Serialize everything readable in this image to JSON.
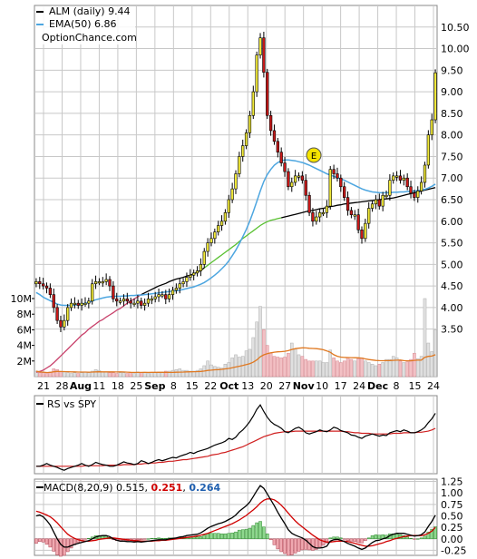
{
  "chart_data": [
    {
      "type": "candlestick",
      "title": "ALM (daily) 9.44",
      "watermark": "OptionChance.com",
      "legend": [
        {
          "label": "ALM (daily) 9.44",
          "color": "#000000"
        },
        {
          "label": "EMA(50) 6.86",
          "color": "#4da6e0"
        }
      ],
      "y_ticks": [
        "10.50",
        "10.00",
        "9.50",
        "9.00",
        "8.50",
        "8.00",
        "7.50",
        "7.00",
        "6.50",
        "6.00",
        "5.50",
        "5.00",
        "4.50",
        "4.00",
        "3.50"
      ],
      "volume_ticks": [
        "10M",
        "8M",
        "6M",
        "4M",
        "2M"
      ],
      "x_labels": [
        "21",
        "28",
        "Aug",
        "11",
        "18",
        "25",
        "Sep",
        "8",
        "15",
        "22",
        "Oct",
        "13",
        "20",
        "27",
        "Nov",
        "10",
        "17",
        "24",
        "Dec",
        "8",
        "15",
        "24"
      ],
      "ylim": [
        2.4,
        11.0
      ],
      "grid": true,
      "event_marker": "E",
      "close": [
        4.6,
        4.55,
        4.5,
        4.45,
        4.3,
        4.0,
        3.7,
        3.55,
        3.7,
        4.0,
        4.1,
        4.1,
        4.05,
        4.1,
        4.1,
        4.15,
        4.55,
        4.6,
        4.6,
        4.6,
        4.65,
        4.5,
        4.2,
        4.15,
        4.15,
        4.2,
        4.15,
        4.1,
        4.1,
        4.15,
        4.05,
        4.1,
        4.2,
        4.2,
        4.25,
        4.3,
        4.3,
        4.2,
        4.3,
        4.4,
        4.45,
        4.55,
        4.6,
        4.7,
        4.75,
        4.8,
        4.85,
        5.0,
        5.3,
        5.5,
        5.6,
        5.75,
        5.9,
        6.0,
        6.2,
        6.5,
        6.75,
        7.1,
        7.5,
        7.75,
        8.05,
        8.45,
        9.0,
        9.85,
        10.25,
        9.45,
        8.45,
        8.1,
        7.85,
        7.6,
        7.35,
        7.15,
        6.8,
        6.9,
        7.05,
        7.05,
        6.95,
        6.6,
        6.2,
        6.0,
        6.1,
        6.2,
        6.2,
        6.35,
        7.2,
        7.1,
        7.0,
        6.8,
        6.55,
        6.25,
        6.15,
        6.15,
        5.8,
        5.6,
        5.95,
        6.3,
        6.4,
        6.5,
        6.35,
        6.6,
        6.6,
        6.95,
        7.05,
        7.05,
        6.95,
        7.0,
        6.8,
        6.65,
        6.55,
        6.7,
        6.9,
        7.3,
        8.0,
        8.35,
        9.44
      ],
      "ema50": [
        4.35,
        4.3,
        4.24,
        4.2,
        4.16,
        4.12,
        4.08,
        4.06,
        4.05,
        4.05,
        4.05,
        4.06,
        4.07,
        4.08,
        4.1,
        4.12,
        4.15,
        4.18,
        4.2,
        4.22,
        4.24,
        4.25,
        4.26,
        4.26,
        4.26,
        4.27,
        4.27,
        4.28,
        4.28,
        4.29,
        4.29,
        4.3,
        4.31,
        4.32,
        4.33,
        4.34,
        4.35,
        4.36,
        4.37,
        4.38,
        4.39,
        4.4,
        4.42,
        4.44,
        4.46,
        4.48,
        4.51,
        4.54,
        4.58,
        4.63,
        4.69,
        4.75,
        4.82,
        4.9,
        4.98,
        5.08,
        5.2,
        5.33,
        5.48,
        5.64,
        5.81,
        6.0,
        6.22,
        6.46,
        6.7,
        6.92,
        7.08,
        7.2,
        7.3,
        7.36,
        7.4,
        7.42,
        7.42,
        7.41,
        7.4,
        7.38,
        7.36,
        7.33,
        7.3,
        7.26,
        7.22,
        7.18,
        7.14,
        7.1,
        7.07,
        7.04,
        7.01,
        6.98,
        6.95,
        6.91,
        6.87,
        6.83,
        6.79,
        6.75,
        6.72,
        6.7,
        6.68,
        6.67,
        6.66,
        6.66,
        6.66,
        6.66,
        6.67,
        6.67,
        6.68,
        6.68,
        6.69,
        6.69,
        6.7,
        6.71,
        6.72,
        6.74,
        6.77,
        6.81,
        6.86
      ],
      "sma200": [
        2.5,
        2.52,
        2.55,
        2.6,
        2.65,
        2.72,
        2.8,
        2.88,
        2.96,
        3.04,
        3.12,
        3.2,
        3.28,
        3.36,
        3.42,
        3.5,
        3.56,
        3.62,
        3.68,
        3.72,
        3.78,
        3.83,
        3.88,
        3.94,
        3.98,
        4.04,
        4.1,
        4.16,
        4.2,
        4.25,
        4.3,
        4.34,
        4.38,
        4.42,
        4.46,
        4.5,
        4.53,
        4.56,
        4.6,
        4.63,
        4.66,
        4.68,
        4.7,
        4.73,
        4.75,
        4.78,
        4.82,
        4.86,
        4.92,
        4.98,
        5.04,
        5.1,
        5.16,
        5.22,
        5.28,
        5.34,
        5.4,
        5.46,
        5.53,
        5.6,
        5.66,
        5.72,
        5.78,
        5.84,
        5.9,
        5.95,
        5.99,
        6.02,
        6.04,
        6.06,
        6.08,
        6.1,
        6.12,
        6.14,
        6.16,
        6.18,
        6.2,
        6.22,
        6.24,
        6.25,
        6.27,
        6.29,
        6.3,
        6.32,
        6.34,
        6.35,
        6.37,
        6.38,
        6.4,
        6.41,
        6.42,
        6.43,
        6.44,
        6.45,
        6.46,
        6.47,
        6.48,
        6.49,
        6.5,
        6.51,
        6.52,
        6.53,
        6.54,
        6.56,
        6.58,
        6.6,
        6.62,
        6.64,
        6.66,
        6.68,
        6.7,
        6.72,
        6.74,
        6.76,
        6.78
      ],
      "volume": [
        0.7,
        0.5,
        0.5,
        0.4,
        0.6,
        1.0,
        0.9,
        0.6,
        0.6,
        0.5,
        0.4,
        0.5,
        0.4,
        0.5,
        0.6,
        0.5,
        0.7,
        0.9,
        0.8,
        0.6,
        0.6,
        0.5,
        0.5,
        0.4,
        0.5,
        0.5,
        0.4,
        0.5,
        0.4,
        0.6,
        0.5,
        0.5,
        0.4,
        0.5,
        0.5,
        0.6,
        0.6,
        0.7,
        0.7,
        0.8,
        0.9,
        1.0,
        0.8,
        0.8,
        0.7,
        0.7,
        0.8,
        1.0,
        1.4,
        2.0,
        1.5,
        1.3,
        1.2,
        1.1,
        1.6,
        1.8,
        2.4,
        2.8,
        2.5,
        2.6,
        3.3,
        3.5,
        5.0,
        7.0,
        9.0,
        6.0,
        4.0,
        3.0,
        2.6,
        2.5,
        2.4,
        2.5,
        3.0,
        4.3,
        3.5,
        2.8,
        2.6,
        2.2,
        2.0,
        2.0,
        2.0,
        2.0,
        1.8,
        1.8,
        3.4,
        2.4,
        2.0,
        1.8,
        2.0,
        2.4,
        2.2,
        2.0,
        2.3,
        2.4,
        2.0,
        1.8,
        1.6,
        1.4,
        1.6,
        1.8,
        2.2,
        2.2,
        2.6,
        2.4,
        2.0,
        1.8,
        1.9,
        2.2,
        3.0,
        2.3,
        2.6,
        10.0,
        4.3,
        3.2,
        6.0
      ]
    },
    {
      "type": "line",
      "title": "RS vs SPY",
      "series": [
        {
          "name": "RS vs SPY"
        }
      ],
      "rs": [
        0.1,
        0.1,
        0.12,
        0.15,
        0.12,
        0.1,
        0.08,
        0.05,
        0.03,
        0.06,
        0.08,
        0.1,
        0.12,
        0.15,
        0.12,
        0.1,
        0.13,
        0.17,
        0.15,
        0.13,
        0.12,
        0.1,
        0.1,
        0.12,
        0.15,
        0.18,
        0.16,
        0.15,
        0.13,
        0.15,
        0.2,
        0.18,
        0.15,
        0.17,
        0.2,
        0.22,
        0.2,
        0.22,
        0.24,
        0.26,
        0.25,
        0.28,
        0.3,
        0.32,
        0.35,
        0.33,
        0.36,
        0.38,
        0.4,
        0.42,
        0.45,
        0.48,
        0.5,
        0.52,
        0.55,
        0.6,
        0.58,
        0.62,
        0.7,
        0.75,
        0.82,
        0.9,
        1.0,
        1.12,
        1.2,
        1.08,
        0.98,
        0.9,
        0.85,
        0.82,
        0.78,
        0.72,
        0.7,
        0.74,
        0.78,
        0.8,
        0.76,
        0.7,
        0.68,
        0.7,
        0.72,
        0.75,
        0.73,
        0.72,
        0.75,
        0.8,
        0.78,
        0.74,
        0.72,
        0.7,
        0.66,
        0.65,
        0.62,
        0.6,
        0.64,
        0.66,
        0.68,
        0.66,
        0.64,
        0.66,
        0.65,
        0.7,
        0.72,
        0.74,
        0.72,
        0.75,
        0.73,
        0.7,
        0.7,
        0.72,
        0.75,
        0.8,
        0.88,
        0.95,
        1.05
      ],
      "rs_avg": [
        0.1,
        0.1,
        0.1,
        0.1,
        0.1,
        0.1,
        0.1,
        0.1,
        0.1,
        0.1,
        0.1,
        0.1,
        0.1,
        0.1,
        0.11,
        0.11,
        0.11,
        0.11,
        0.11,
        0.11,
        0.12,
        0.12,
        0.12,
        0.12,
        0.12,
        0.13,
        0.13,
        0.13,
        0.13,
        0.14,
        0.14,
        0.15,
        0.15,
        0.16,
        0.16,
        0.17,
        0.17,
        0.18,
        0.19,
        0.19,
        0.2,
        0.21,
        0.22,
        0.22,
        0.23,
        0.24,
        0.25,
        0.26,
        0.27,
        0.28,
        0.3,
        0.31,
        0.32,
        0.34,
        0.35,
        0.37,
        0.39,
        0.41,
        0.43,
        0.45,
        0.48,
        0.51,
        0.54,
        0.57,
        0.6,
        0.63,
        0.65,
        0.67,
        0.69,
        0.7,
        0.71,
        0.72,
        0.72,
        0.72,
        0.73,
        0.73,
        0.73,
        0.73,
        0.73,
        0.73,
        0.73,
        0.73,
        0.73,
        0.73,
        0.73,
        0.73,
        0.73,
        0.73,
        0.72,
        0.72,
        0.71,
        0.7,
        0.7,
        0.69,
        0.69,
        0.69,
        0.68,
        0.68,
        0.68,
        0.68,
        0.68,
        0.68,
        0.69,
        0.69,
        0.69,
        0.7,
        0.7,
        0.7,
        0.7,
        0.71,
        0.71,
        0.72,
        0.73,
        0.75,
        0.78
      ]
    },
    {
      "type": "line+bar",
      "title": "MACD(8,20,9)",
      "legend_values": {
        "macd": "0.515",
        "signal": "0.251",
        "hist": "0.264"
      },
      "legend_colors": {
        "macd": "#000000",
        "signal": "#d00000",
        "hist": "#2060b0"
      },
      "y_ticks": [
        "1.25",
        "1.00",
        "0.75",
        "0.50",
        "0.25",
        "0.00",
        "-0.25"
      ],
      "ylim": [
        -0.36,
        1.3
      ],
      "macd": [
        0.5,
        0.52,
        0.48,
        0.4,
        0.3,
        0.15,
        0.0,
        -0.12,
        -0.18,
        -0.18,
        -0.15,
        -0.12,
        -0.1,
        -0.08,
        -0.06,
        -0.04,
        0.0,
        0.04,
        0.06,
        0.07,
        0.07,
        0.05,
        0.0,
        -0.03,
        -0.05,
        -0.05,
        -0.06,
        -0.06,
        -0.07,
        -0.06,
        -0.07,
        -0.06,
        -0.05,
        -0.04,
        -0.03,
        -0.02,
        -0.02,
        -0.02,
        0.0,
        0.01,
        0.02,
        0.04,
        0.05,
        0.07,
        0.08,
        0.09,
        0.1,
        0.13,
        0.18,
        0.23,
        0.27,
        0.3,
        0.33,
        0.35,
        0.38,
        0.42,
        0.46,
        0.52,
        0.6,
        0.66,
        0.72,
        0.8,
        0.92,
        1.05,
        1.16,
        1.1,
        0.98,
        0.85,
        0.72,
        0.58,
        0.45,
        0.33,
        0.2,
        0.12,
        0.08,
        0.05,
        0.02,
        -0.03,
        -0.1,
        -0.17,
        -0.2,
        -0.2,
        -0.19,
        -0.16,
        -0.05,
        -0.02,
        -0.01,
        -0.03,
        -0.06,
        -0.1,
        -0.13,
        -0.16,
        -0.2,
        -0.23,
        -0.2,
        -0.14,
        -0.08,
        -0.04,
        -0.03,
        0.0,
        0.02,
        0.07,
        0.1,
        0.12,
        0.12,
        0.12,
        0.1,
        0.08,
        0.06,
        0.07,
        0.09,
        0.15,
        0.27,
        0.38,
        0.515
      ],
      "signal": [
        0.6,
        0.58,
        0.55,
        0.52,
        0.48,
        0.42,
        0.35,
        0.26,
        0.18,
        0.1,
        0.05,
        0.01,
        -0.02,
        -0.04,
        -0.05,
        -0.05,
        -0.04,
        -0.03,
        -0.01,
        0.0,
        0.01,
        0.02,
        0.02,
        0.01,
        0.0,
        -0.01,
        -0.02,
        -0.03,
        -0.04,
        -0.04,
        -0.05,
        -0.05,
        -0.05,
        -0.05,
        -0.04,
        -0.04,
        -0.03,
        -0.03,
        -0.02,
        -0.01,
        0.0,
        0.01,
        0.02,
        0.03,
        0.04,
        0.05,
        0.06,
        0.08,
        0.1,
        0.12,
        0.15,
        0.18,
        0.21,
        0.24,
        0.27,
        0.3,
        0.33,
        0.37,
        0.41,
        0.46,
        0.51,
        0.57,
        0.63,
        0.7,
        0.78,
        0.84,
        0.87,
        0.87,
        0.85,
        0.8,
        0.73,
        0.65,
        0.56,
        0.47,
        0.39,
        0.32,
        0.26,
        0.2,
        0.14,
        0.08,
        0.03,
        -0.02,
        -0.05,
        -0.07,
        -0.07,
        -0.06,
        -0.05,
        -0.05,
        -0.05,
        -0.06,
        -0.08,
        -0.1,
        -0.12,
        -0.14,
        -0.16,
        -0.16,
        -0.15,
        -0.13,
        -0.11,
        -0.09,
        -0.06,
        -0.04,
        -0.01,
        0.01,
        0.03,
        0.05,
        0.06,
        0.07,
        0.07,
        0.07,
        0.07,
        0.09,
        0.12,
        0.17,
        0.251
      ]
    }
  ]
}
